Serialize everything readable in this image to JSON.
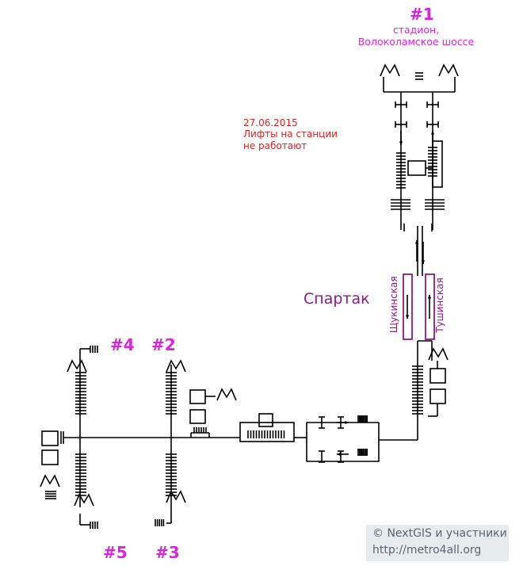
{
  "station_name": "Спартак",
  "notice": {
    "date": "27.06.2015",
    "line1": "Лифты на станции",
    "line2": "не работают"
  },
  "platforms": {
    "left": "Щукинская",
    "right": "Тушинская"
  },
  "exits": [
    {
      "number": "#1",
      "description_line1": "стадион,",
      "description_line2": "Волоколамское шоссе"
    },
    {
      "number": "#2"
    },
    {
      "number": "#3"
    },
    {
      "number": "#4"
    },
    {
      "number": "#5"
    }
  ],
  "copyright": {
    "line1": "© NextGIS и участники",
    "line2": "http://metro4all.org"
  },
  "colors": {
    "exit_labels": "#e020e0",
    "notice": "#e02020",
    "station": "#8b1a8b",
    "lines": "#000000",
    "copyright_bg": "#e6ebee"
  }
}
